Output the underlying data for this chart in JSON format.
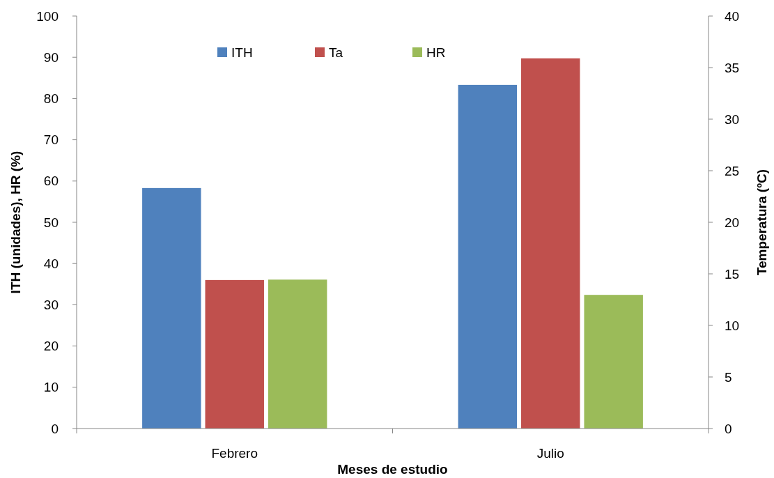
{
  "chart_data": {
    "type": "bar",
    "categories": [
      "Febrero",
      "Julio"
    ],
    "series": [
      {
        "name": "ITH",
        "color": "#4f81bd",
        "values": [
          58.3,
          83.3
        ]
      },
      {
        "name": "Ta",
        "color": "#c0504d",
        "values": [
          14.4,
          35.9
        ],
        "axis": "y2"
      },
      {
        "name": "HR",
        "color": "#9bbb59",
        "values": [
          36.1,
          32.4
        ]
      }
    ],
    "xlabel": "Meses de estudio",
    "ylabel": "ITH (unidades), HR (%)",
    "y2label": "Temperatura (ºC)",
    "ylim": [
      0,
      100
    ],
    "yticks": [
      0,
      10,
      20,
      30,
      40,
      50,
      60,
      70,
      80,
      90,
      100
    ],
    "y2lim": [
      0,
      40
    ],
    "y2ticks": [
      0,
      5,
      10,
      15,
      20,
      25,
      30,
      35,
      40
    ],
    "legend": "top",
    "grid": false
  }
}
